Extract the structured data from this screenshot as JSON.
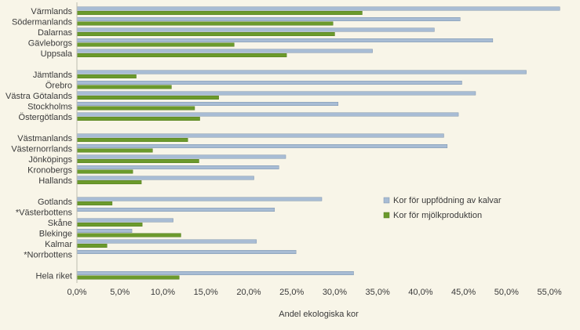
{
  "chart_data": {
    "type": "bar",
    "orientation": "horizontal",
    "title": "",
    "xlabel": "Andel ekologiska kor",
    "ylabel": "",
    "xlim": [
      0,
      57
    ],
    "ticks": [
      0,
      5,
      10,
      15,
      20,
      25,
      30,
      35,
      40,
      45,
      50,
      55
    ],
    "tick_labels": [
      "0,0%",
      "5,0%",
      "10,0%",
      "15,0%",
      "20,0%",
      "25,0%",
      "30,0%",
      "35,0%",
      "40,0%",
      "45,0%",
      "50,0%",
      "55,0%"
    ],
    "grid": false,
    "legend_position": "right",
    "categories": [
      "Värmlands",
      "Södermanlands",
      "Dalarnas",
      "Gävleborgs",
      "Uppsala",
      "Jämtlands",
      "Örebro",
      "Västra Götalands",
      "Stockholms",
      "Östergötlands",
      "Västmanlands",
      "Västernorrlands",
      "Jönköpings",
      "Kronobergs",
      "Hallands",
      "Gotlands",
      "*Västerbottens",
      "Skåne",
      "Blekinge",
      "Kalmar",
      "*Norrbottens",
      "Hela riket"
    ],
    "groups": [
      5,
      5,
      5,
      6,
      1
    ],
    "series": [
      {
        "name": "Kor för uppfödning av kalvar",
        "color": "#a8bcd4",
        "values": [
          56.2,
          44.6,
          41.6,
          48.4,
          34.4,
          52.3,
          44.8,
          46.4,
          30.4,
          44.4,
          42.7,
          43.1,
          24.3,
          23.5,
          20.6,
          28.5,
          23.0,
          11.2,
          6.4,
          20.9,
          25.5,
          32.2
        ]
      },
      {
        "name": "Kor för mjölkproduktion",
        "color": "#6b9a2c",
        "values": [
          33.2,
          29.8,
          30.0,
          18.3,
          24.4,
          6.9,
          11.0,
          16.5,
          13.7,
          14.3,
          12.9,
          8.8,
          14.2,
          6.5,
          7.5,
          4.1,
          0,
          7.6,
          12.1,
          3.5,
          0,
          11.9
        ]
      }
    ]
  }
}
